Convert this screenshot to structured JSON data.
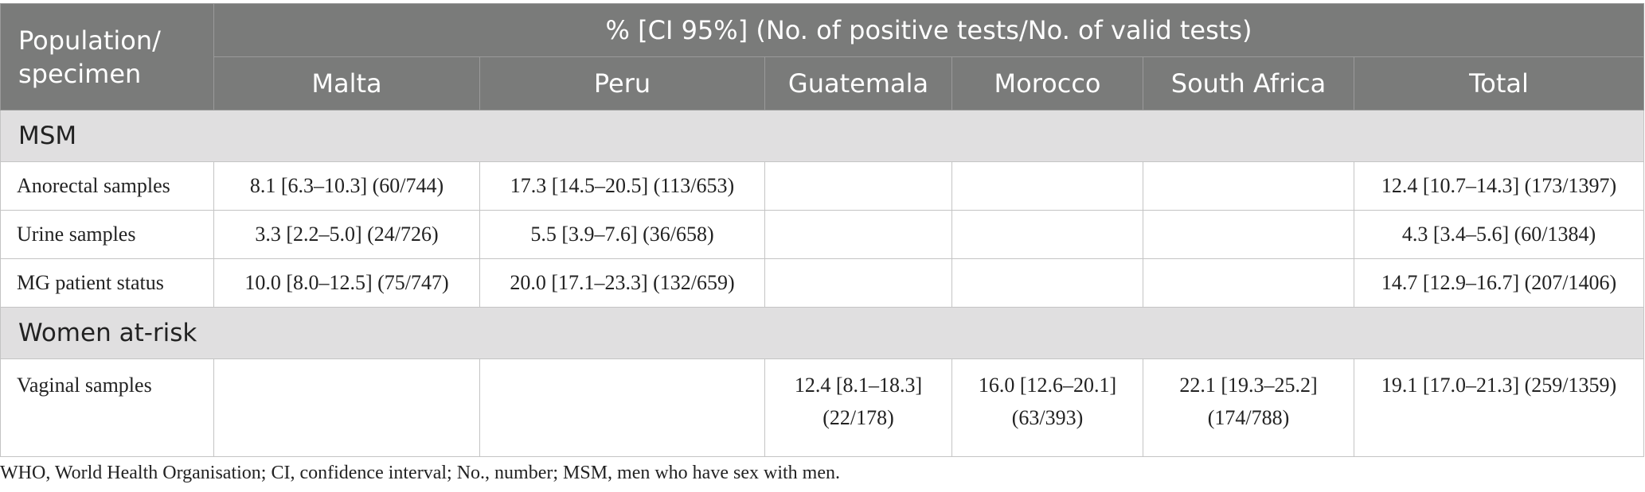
{
  "header": {
    "population_specimen": "Population/ specimen",
    "span_title": "% [CI 95%] (No. of positive tests/No. of valid tests)",
    "columns": [
      "Malta",
      "Peru",
      "Guatemala",
      "Morocco",
      "South Africa",
      "Total"
    ]
  },
  "sections": [
    {
      "title": "MSM",
      "rows": [
        {
          "label": "Anorectal samples",
          "cells": [
            "8.1 [6.3–10.3] (60/744)",
            "17.3 [14.5–20.5] (113/653)",
            "",
            "",
            "",
            "12.4 [10.7–14.3] (173/1397)"
          ]
        },
        {
          "label": "Urine samples",
          "cells": [
            "3.3 [2.2–5.0] (24/726)",
            "5.5 [3.9–7.6] (36/658)",
            "",
            "",
            "",
            "4.3 [3.4–5.6] (60/1384)"
          ]
        },
        {
          "label": "MG patient status",
          "cells": [
            "10.0 [8.0–12.5] (75/747)",
            "20.0 [17.1–23.3] (132/659)",
            "",
            "",
            "",
            "14.7 [12.9–16.7] (207/1406)"
          ]
        }
      ]
    },
    {
      "title": "Women at-risk",
      "rows": [
        {
          "label": "Vaginal samples",
          "cells": [
            "",
            "",
            "12.4 [8.1–18.3] (22/178)",
            "16.0 [12.6–20.1] (63/393)",
            "22.1 [19.3–25.2] (174/788)",
            "19.1 [17.0–21.3] (259/1359)"
          ]
        }
      ]
    }
  ],
  "footnote": "WHO, World Health Organisation; CI, confidence interval; No., number; MSM, men who have sex with men."
}
